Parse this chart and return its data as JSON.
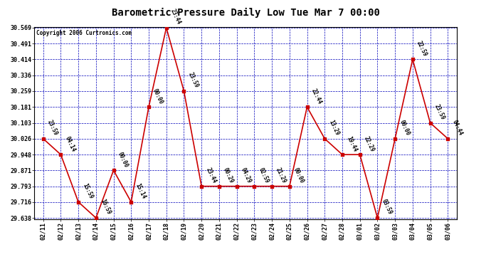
{
  "title": "Barometric Pressure Daily Low Tue Mar 7 00:00",
  "copyright": "Copyright 2006 Curtronics.com",
  "background_color": "#ffffff",
  "plot_background": "#ffffff",
  "line_color": "#cc0000",
  "marker_color": "#cc0000",
  "grid_color": "#0000bb",
  "text_color": "#000000",
  "x_labels": [
    "02/11",
    "02/12",
    "02/13",
    "02/14",
    "02/15",
    "02/16",
    "02/17",
    "02/18",
    "02/19",
    "02/20",
    "02/21",
    "02/22",
    "02/23",
    "02/24",
    "02/25",
    "02/26",
    "02/27",
    "02/28",
    "03/01",
    "03/02",
    "03/03",
    "03/04",
    "03/05",
    "03/06"
  ],
  "y_values": [
    30.026,
    29.948,
    29.716,
    29.638,
    29.871,
    29.716,
    30.181,
    30.569,
    30.259,
    29.793,
    29.793,
    29.793,
    29.793,
    29.793,
    29.793,
    30.181,
    30.026,
    29.948,
    29.948,
    29.638,
    30.026,
    30.414,
    30.103,
    30.026
  ],
  "point_labels": [
    "23:59",
    "04:14",
    "15:59",
    "16:59",
    "00:00",
    "15:14",
    "00:00",
    "23:44",
    "23:59",
    "23:44",
    "00:29",
    "04:29",
    "02:59",
    "21:29",
    "00:00",
    "22:44",
    "13:29",
    "19:44",
    "22:29",
    "03:59",
    "00:00",
    "22:59",
    "23:59",
    "04:44"
  ],
  "ylim_min": 29.638,
  "ylim_max": 30.569,
  "yticks": [
    29.638,
    29.716,
    29.793,
    29.871,
    29.948,
    30.026,
    30.103,
    30.181,
    30.259,
    30.336,
    30.414,
    30.491,
    30.569
  ],
  "title_fontsize": 10,
  "tick_fontsize": 6,
  "label_fontsize": 5.5
}
